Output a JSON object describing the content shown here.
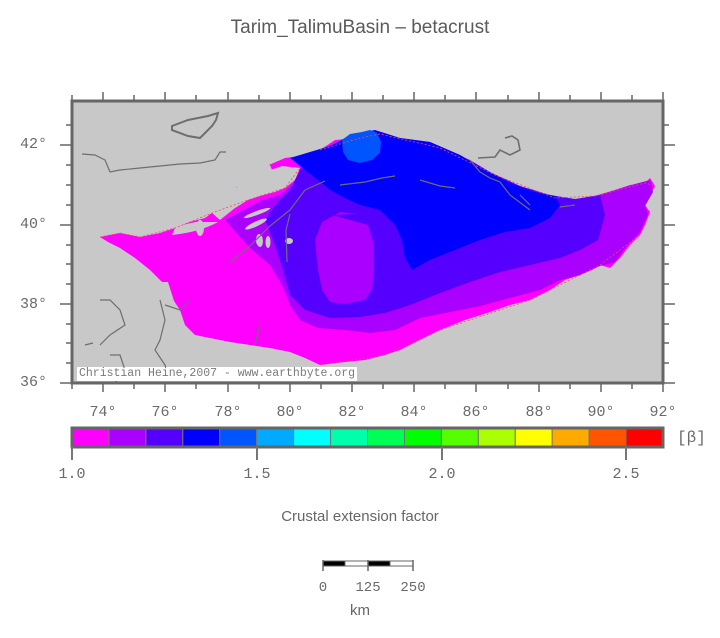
{
  "title": "Tarim_TalimuBasin – betacrust",
  "map": {
    "lon_range": [
      73,
      92
    ],
    "lat_range": [
      36,
      43.1
    ],
    "lat_ticks": [
      {
        "label": "42°",
        "value": 42
      },
      {
        "label": "40°",
        "value": 40
      },
      {
        "label": "38°",
        "value": 38
      },
      {
        "label": "36°",
        "value": 36
      }
    ],
    "lon_ticks": [
      {
        "label": "74°",
        "value": 74
      },
      {
        "label": "76°",
        "value": 76
      },
      {
        "label": "78°",
        "value": 78
      },
      {
        "label": "80°",
        "value": 80
      },
      {
        "label": "82°",
        "value": 82
      },
      {
        "label": "84°",
        "value": 84
      },
      {
        "label": "86°",
        "value": 86
      },
      {
        "label": "88°",
        "value": 88
      },
      {
        "label": "90°",
        "value": 90
      },
      {
        "label": "92°",
        "value": 92
      }
    ],
    "background_color": "#c8c8c8",
    "credit": "Christian Heine,2007 - www.earthbyte.org"
  },
  "colorbar": {
    "title": "Crustal extension factor",
    "unit": "[β]",
    "range": [
      1.0,
      2.6
    ],
    "colors": [
      "#ff00ff",
      "#aa00ff",
      "#5500ff",
      "#0000ff",
      "#0055ff",
      "#00aaff",
      "#00ffff",
      "#00ffaa",
      "#00ff55",
      "#00ff00",
      "#55ff00",
      "#aaff00",
      "#ffff00",
      "#ffaa00",
      "#ff5500",
      "#ff0000"
    ],
    "labels": [
      {
        "label": "1.0",
        "value": 1.0
      },
      {
        "label": "1.5",
        "value": 1.5
      },
      {
        "label": "2.0",
        "value": 2.0
      },
      {
        "label": "2.5",
        "value": 2.5
      }
    ]
  },
  "scalebar": {
    "labels": [
      "0",
      "125",
      "250"
    ],
    "unit": "km"
  }
}
